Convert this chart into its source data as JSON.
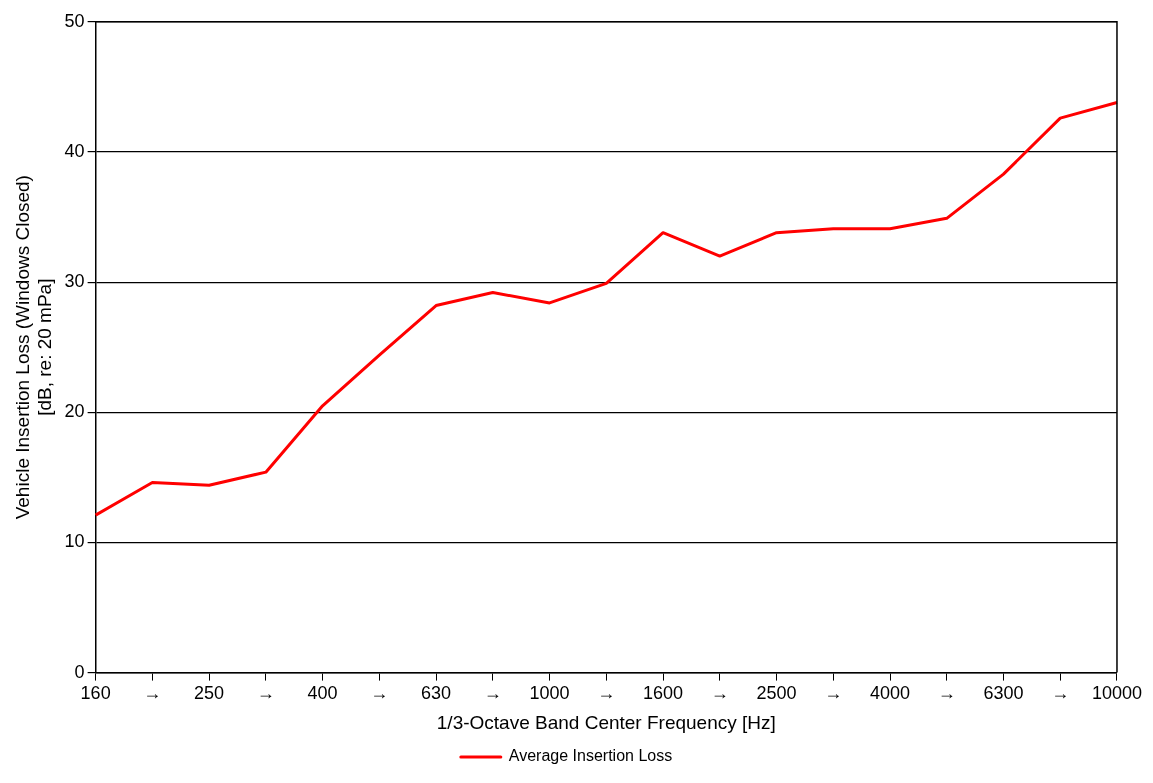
{
  "chart_data": {
    "type": "line",
    "xlabel": "1/3-Octave Band Center Frequency [Hz]",
    "ylabel": "Vehicle Insertion Loss (Windows Closed)\n[dB, re: 20 mPa]",
    "categories": [
      "160",
      "→",
      "250",
      "→",
      "400",
      "→",
      "630",
      "→",
      "1000",
      "→",
      "1600",
      "→",
      "2500",
      "→",
      "4000",
      "→",
      "6300",
      "→",
      "10000"
    ],
    "series": [
      {
        "name": "Average Insertion Loss",
        "color": "#ff0000",
        "values": [
          12.1,
          14.6,
          14.4,
          15.4,
          20.5,
          24.4,
          28.2,
          29.2,
          28.4,
          29.9,
          33.8,
          32.0,
          33.8,
          34.1,
          34.1,
          34.9,
          38.3,
          42.6,
          43.8
        ]
      }
    ],
    "ylim": [
      0,
      50
    ],
    "yticks": [
      0,
      10,
      20,
      30,
      40,
      50
    ],
    "grid": "y",
    "legend": "bottom",
    "marker": "none",
    "line_style": "solid"
  }
}
